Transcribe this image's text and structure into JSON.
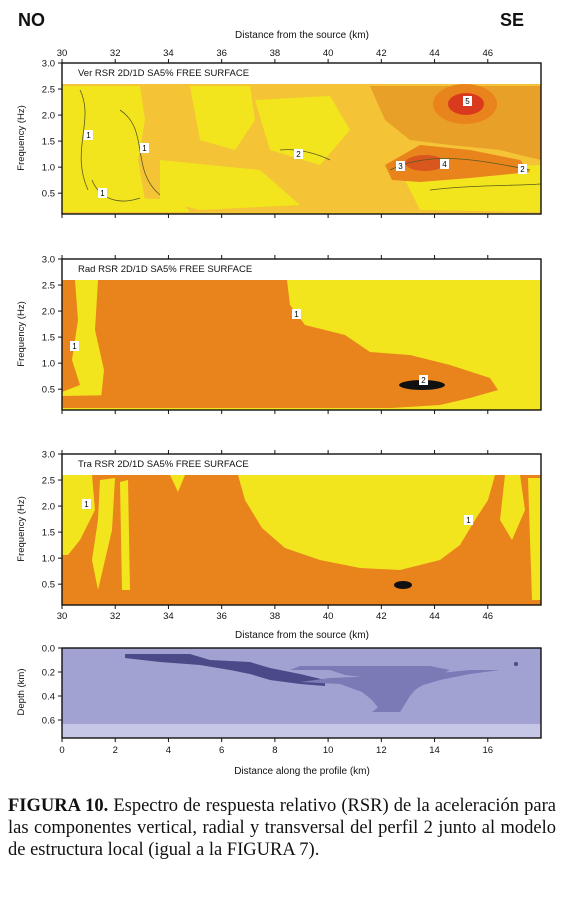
{
  "header": {
    "left": "NO",
    "right": "SE"
  },
  "top_axis_title": "Distance from the source (km)",
  "bottom_axis_title": "Distance from the source (km)",
  "panels": [
    {
      "title": "Ver RSR 2D/1D SA5% FREE SURFACE",
      "ylabel": "Frequency (Hz)",
      "contour_labels": [
        "1",
        "1",
        "1",
        "2",
        "3",
        "4",
        "5",
        "2"
      ]
    },
    {
      "title": "Rad RSR 2D/1D SA5% FREE SURFACE",
      "ylabel": "Frequency (Hz)",
      "contour_labels": [
        "1",
        "1",
        "2"
      ]
    },
    {
      "title": "Tra RSR 2D/1D SA5% FREE SURFACE",
      "ylabel": "Frequency (Hz)",
      "contour_labels": [
        "1",
        "1"
      ]
    }
  ],
  "colors": {
    "yellow": "#f2e51e",
    "orange": "#e9841c",
    "light_orange": "#f4c336",
    "red": "#d93a1e",
    "deep_blue": "#4a4a88",
    "mid_blue": "#7a7ab6",
    "light_blue": "#a2a2d2",
    "pale_blue": "#c6c6e6"
  },
  "chart_data": [
    {
      "type": "heatmap",
      "title": "Ver RSR 2D/1D SA5% FREE SURFACE",
      "xlabel": "Distance from the source (km)",
      "ylabel": "Frequency (Hz)",
      "xlim": [
        30,
        48
      ],
      "ylim": [
        0.1,
        3.0
      ],
      "x_ticks": [
        "30",
        "32",
        "34",
        "36",
        "38",
        "40",
        "42",
        "44",
        "46"
      ],
      "y_ticks": [
        "0.5",
        "1.0",
        "1.5",
        "2.0",
        "2.5",
        "3.0"
      ]
    },
    {
      "type": "heatmap",
      "title": "Rad RSR 2D/1D SA5% FREE SURFACE",
      "xlabel": "",
      "ylabel": "Frequency (Hz)",
      "xlim": [
        30,
        48
      ],
      "ylim": [
        0.1,
        3.0
      ],
      "y_ticks": [
        "0.5",
        "1.0",
        "1.5",
        "2.0",
        "2.5",
        "3.0"
      ]
    },
    {
      "type": "heatmap",
      "title": "Tra RSR 2D/1D SA5% FREE SURFACE",
      "xlabel": "Distance from the source (km)",
      "ylabel": "Frequency (Hz)",
      "xlim": [
        30,
        48
      ],
      "ylim": [
        0.1,
        3.0
      ],
      "x_ticks": [
        "30",
        "32",
        "34",
        "36",
        "38",
        "40",
        "42",
        "44",
        "46"
      ],
      "y_ticks": [
        "0.5",
        "1.0",
        "1.5",
        "2.0",
        "2.5",
        "3.0"
      ]
    },
    {
      "type": "area",
      "title": "",
      "xlabel": "Distance along the profile (km)",
      "ylabel": "Depth (km)",
      "xlim": [
        0,
        18
      ],
      "ylim": [
        0.75,
        0.0
      ],
      "x_ticks": [
        "0",
        "2",
        "4",
        "6",
        "8",
        "10",
        "12",
        "14",
        "16"
      ],
      "y_ticks": [
        "0.0",
        "0.2",
        "0.4",
        "0.6"
      ]
    }
  ],
  "caption": {
    "label": "FIGURA 10.",
    "text": " Espectro de respuesta relativo (RSR) de la aceleración para las componentes vertical, radial y transversal del perfil 2 junto al modelo de estructura local (igual a la FIGURA 7)."
  }
}
